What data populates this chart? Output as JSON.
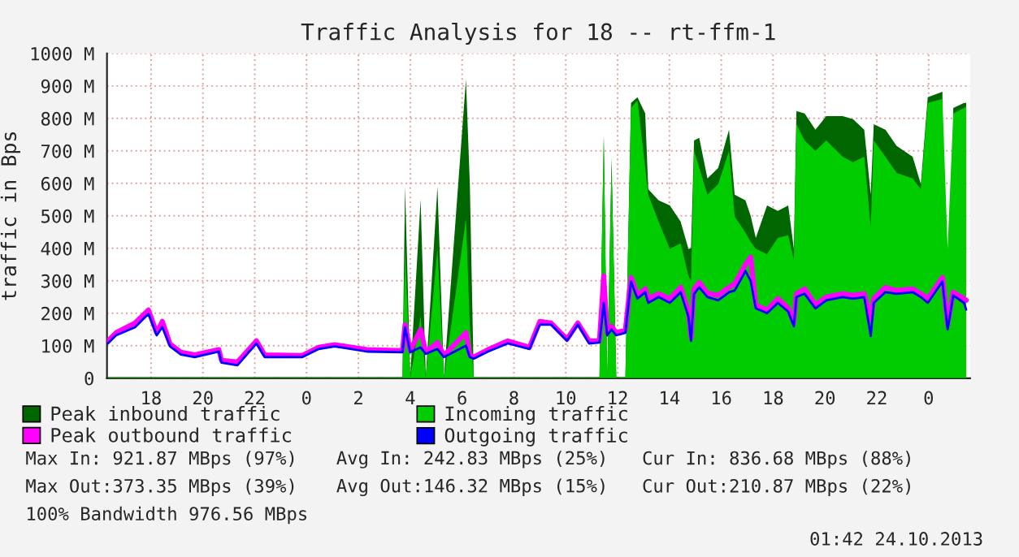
{
  "chart_data": {
    "type": "area",
    "title": "Traffic Analysis for 18 -- rt-ffm-1",
    "ylabel": "traffic in Bps",
    "x": [
      "2013-10-22T16:20",
      "2013-10-22T16:39",
      "2013-10-22T17:23",
      "2013-10-22T17:54",
      "2013-10-22T18:13",
      "2013-10-22T18:26",
      "2013-10-22T18:44",
      "2013-10-22T19:09",
      "2013-10-22T19:41",
      "2013-10-22T20:37",
      "2013-10-22T20:43",
      "2013-10-22T21:20",
      "2013-10-22T22:04",
      "2013-10-22T22:23",
      "2013-10-22T23:50",
      "2013-10-23T00:28",
      "2013-10-23T01:05",
      "2013-10-23T02:20",
      "2013-10-23T03:42",
      "2013-10-23T03:48",
      "2013-10-23T04:00",
      "2013-10-23T04:24",
      "2013-10-23T04:36",
      "2013-10-23T05:03",
      "2013-10-23T05:18",
      "2013-10-23T06:09",
      "2013-10-23T06:18",
      "2013-10-23T06:27",
      "2013-10-23T07:00",
      "2013-10-23T07:46",
      "2013-10-23T08:36",
      "2013-10-23T09:00",
      "2013-10-23T09:26",
      "2013-10-23T10:03",
      "2013-10-23T10:28",
      "2013-10-23T10:54",
      "2013-10-23T11:18",
      "2013-10-23T11:28",
      "2013-10-23T11:36",
      "2013-10-23T11:46",
      "2013-10-23T11:57",
      "2013-10-23T12:18",
      "2013-10-23T12:31",
      "2013-10-23T12:46",
      "2013-10-23T13:04",
      "2013-10-23T13:11",
      "2013-10-23T13:35",
      "2013-10-23T14:01",
      "2013-10-23T14:26",
      "2013-10-23T14:44",
      "2013-10-23T14:50",
      "2013-10-23T14:57",
      "2013-10-23T15:09",
      "2013-10-23T15:28",
      "2013-10-23T15:53",
      "2013-10-23T16:18",
      "2013-10-23T16:31",
      "2013-10-23T16:56",
      "2013-10-23T17:08",
      "2013-10-23T17:20",
      "2013-10-23T17:46",
      "2013-10-23T18:11",
      "2013-10-23T18:35",
      "2013-10-23T18:48",
      "2013-10-23T18:54",
      "2013-10-23T19:13",
      "2013-10-23T19:38",
      "2013-10-23T20:03",
      "2013-10-23T20:41",
      "2013-10-23T21:05",
      "2013-10-23T21:31",
      "2013-10-23T21:46",
      "2013-10-23T21:53",
      "2013-10-23T22:20",
      "2013-10-23T22:46",
      "2013-10-23T23:23",
      "2013-10-23T23:42",
      "2013-10-23T23:58",
      "2013-10-24T00:32",
      "2013-10-24T00:44",
      "2013-10-24T00:57",
      "2013-10-24T01:22",
      "2013-10-24T01:27"
    ],
    "series": [
      {
        "name": "Peak inbound traffic",
        "color": "#006600",
        "values": [
          3,
          3,
          3,
          3,
          3,
          3,
          3,
          3,
          3,
          3,
          3,
          3,
          3,
          3,
          3,
          3,
          3,
          3,
          3,
          590,
          3,
          550,
          3,
          590,
          3,
          920,
          595,
          3,
          3,
          3,
          3,
          3,
          3,
          3,
          3,
          3,
          3,
          750,
          3,
          680,
          3,
          3,
          848,
          865,
          815,
          582,
          548,
          532,
          482,
          398,
          400,
          732,
          740,
          615,
          648,
          765,
          565,
          548,
          500,
          432,
          532,
          515,
          532,
          398,
          823,
          815,
          765,
          807,
          807,
          798,
          765,
          565,
          782,
          765,
          715,
          682,
          598,
          865,
          882,
          null,
          832,
          848,
          848
        ]
      },
      {
        "name": "Incoming traffic",
        "color": "#00cc00",
        "values": [
          2,
          2,
          2,
          2,
          2,
          2,
          2,
          2,
          2,
          2,
          2,
          2,
          2,
          2,
          2,
          2,
          2,
          2,
          2,
          400,
          2,
          190,
          2,
          400,
          2,
          490,
          160,
          2,
          2,
          2,
          2,
          2,
          2,
          2,
          2,
          2,
          2,
          740,
          2,
          650,
          2,
          2,
          832,
          855,
          648,
          565,
          482,
          398,
          415,
          315,
          300,
          700,
          648,
          565,
          598,
          700,
          498,
          448,
          420,
          398,
          382,
          432,
          440,
          365,
          782,
          732,
          700,
          732,
          682,
          665,
          682,
          465,
          732,
          682,
          632,
          615,
          582,
          848,
          860,
          398,
          815,
          832,
          837
        ]
      },
      {
        "type": "line",
        "name": "Peak outbound traffic",
        "color": "#ff00ff",
        "values": [
          115,
          140,
          170,
          210,
          140,
          175,
          105,
          80,
          72,
          88,
          55,
          50,
          115,
          72,
          70,
          95,
          103,
          88,
          85,
          165,
          85,
          150,
          80,
          110,
          70,
          140,
          70,
          65,
          88,
          115,
          95,
          175,
          170,
          120,
          170,
          115,
          115,
          315,
          140,
          160,
          140,
          148,
          310,
          255,
          275,
          245,
          260,
          245,
          280,
          205,
          125,
          275,
          295,
          262,
          255,
          280,
          290,
          350,
          373,
          225,
          210,
          245,
          215,
          170,
          260,
          275,
          225,
          250,
          260,
          255,
          260,
          180,
          245,
          280,
          270,
          275,
          260,
          245,
          310,
          165,
          265,
          245,
          240
        ]
      },
      {
        "type": "line",
        "name": "Outgoing traffic",
        "color": "#0000ff",
        "values": [
          107,
          132,
          157,
          198,
          132,
          157,
          98,
          73,
          65,
          82,
          48,
          40,
          107,
          65,
          65,
          90,
          98,
          82,
          80,
          157,
          80,
          95,
          75,
          90,
          65,
          100,
          65,
          60,
          82,
          107,
          90,
          165,
          165,
          115,
          165,
          107,
          110,
          232,
          132,
          150,
          132,
          140,
          298,
          245,
          265,
          232,
          250,
          232,
          265,
          190,
          115,
          260,
          280,
          250,
          240,
          265,
          270,
          330,
          300,
          215,
          200,
          232,
          205,
          160,
          250,
          260,
          215,
          240,
          250,
          245,
          250,
          130,
          232,
          265,
          260,
          265,
          250,
          232,
          298,
          150,
          255,
          232,
          211
        ]
      }
    ],
    "xlim": [
      "2013-10-22T16:18",
      "2013-10-24T01:36"
    ],
    "xticks": [
      {
        "value": "2013-10-22T18:00",
        "label": "18"
      },
      {
        "value": "2013-10-22T20:00",
        "label": "20"
      },
      {
        "value": "2013-10-22T22:00",
        "label": "22"
      },
      {
        "value": "2013-10-23T00:00",
        "label": "0"
      },
      {
        "value": "2013-10-23T02:00",
        "label": "2"
      },
      {
        "value": "2013-10-23T04:00",
        "label": "4"
      },
      {
        "value": "2013-10-23T06:00",
        "label": "6"
      },
      {
        "value": "2013-10-23T08:00",
        "label": "8"
      },
      {
        "value": "2013-10-23T10:00",
        "label": "10"
      },
      {
        "value": "2013-10-23T12:00",
        "label": "12"
      },
      {
        "value": "2013-10-23T14:00",
        "label": "14"
      },
      {
        "value": "2013-10-23T16:00",
        "label": "16"
      },
      {
        "value": "2013-10-23T18:00",
        "label": "18"
      },
      {
        "value": "2013-10-23T20:00",
        "label": "20"
      },
      {
        "value": "2013-10-23T22:00",
        "label": "22"
      },
      {
        "value": "2013-10-24T00:00",
        "label": "0"
      }
    ],
    "ylim": [
      0,
      1000
    ],
    "yticks": [
      0,
      {
        "value": 100,
        "label": "100 M"
      },
      {
        "value": 200,
        "label": "200 M"
      },
      {
        "value": 300,
        "label": "300 M"
      },
      {
        "value": 400,
        "label": "400 M"
      },
      {
        "value": 500,
        "label": "500 M"
      },
      {
        "value": 600,
        "label": "600 M"
      },
      {
        "value": 700,
        "label": "700 M"
      },
      {
        "value": 800,
        "label": "800 M"
      },
      {
        "value": 900,
        "label": "900 M"
      },
      {
        "value": 1000,
        "label": "1000 M"
      }
    ],
    "grid": true,
    "legend": "bottom",
    "annotations": [
      "Max In: 921.87 MBps (97%)",
      "Avg In: 242.83 MBps (25%)",
      "Cur In: 836.68 MBps (88%)",
      "Max Out:373.35 MBps (39%)",
      "Avg Out:146.32 MBps (15%)",
      "Cur Out:210.87 MBps (22%)",
      "100% Bandwidth 976.56 MBps",
      "01:42 24.10.2013"
    ]
  }
}
